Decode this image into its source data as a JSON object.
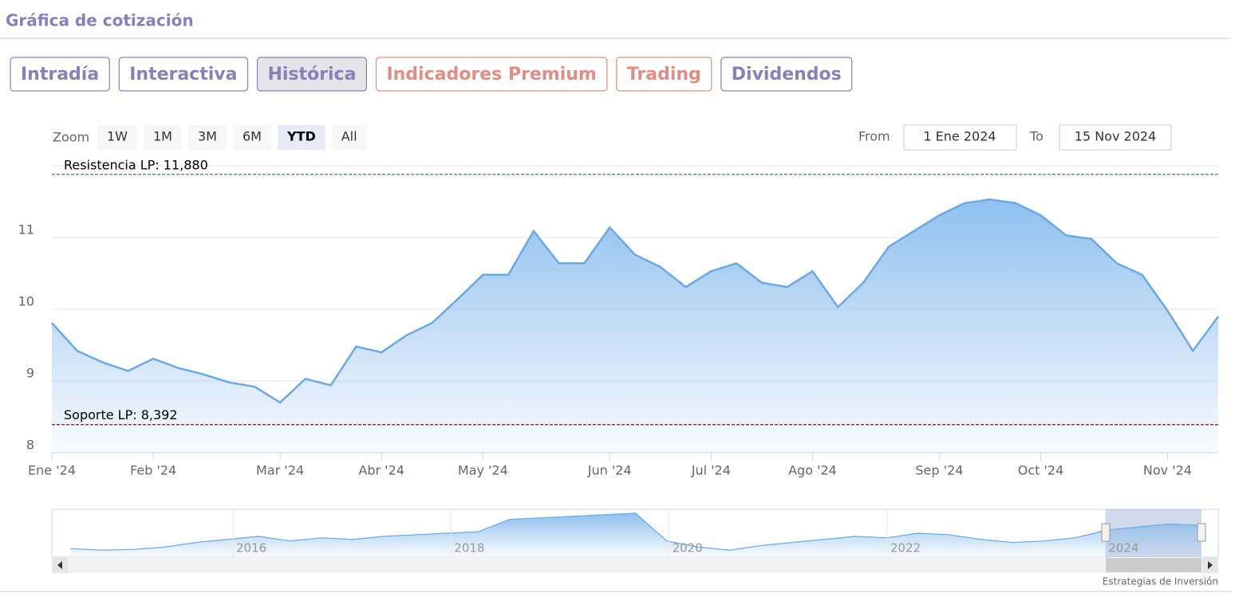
{
  "header": {
    "title": "Gráfica de cotización"
  },
  "tabs": [
    {
      "label": "Intradía",
      "color": "#8a80b8"
    },
    {
      "label": "Interactiva",
      "color": "#8a80b8"
    },
    {
      "label": "Histórica",
      "color": "#8a80b8",
      "active": true
    },
    {
      "label": "Indicadores Premium",
      "color": "#e08d86"
    },
    {
      "label": "Trading",
      "color": "#e08d86"
    },
    {
      "label": "Dividendos",
      "color": "#8a80b8"
    }
  ],
  "zoom": {
    "label": "Zoom",
    "buttons": [
      "1W",
      "1M",
      "3M",
      "6M",
      "YTD",
      "All"
    ],
    "selected": 4
  },
  "range": {
    "from_label": "From",
    "from": "1 Ene 2024",
    "to_label": "To",
    "to": "15 Nov 2024"
  },
  "chart_data": {
    "type": "area",
    "categories": [
      "Ene '24",
      null,
      null,
      null,
      "Feb '24",
      null,
      null,
      null,
      null,
      "Mar '24",
      null,
      null,
      null,
      "Abr '24",
      null,
      null,
      null,
      "May '24",
      null,
      null,
      null,
      null,
      "Jun '24",
      null,
      null,
      null,
      "Jul '24",
      null,
      null,
      null,
      "Ago '24",
      null,
      null,
      null,
      null,
      "Sep '24",
      null,
      null,
      null,
      "Oct '24",
      null,
      null,
      null,
      null,
      "Nov '24",
      null,
      null
    ],
    "series": [
      {
        "name": "Cotización",
        "color": "#6fa8dc",
        "values": [
          9.81,
          9.42,
          9.26,
          9.14,
          9.31,
          9.18,
          9.09,
          8.98,
          8.92,
          8.7,
          9.03,
          8.94,
          9.48,
          9.4,
          9.64,
          9.81,
          10.14,
          10.48,
          10.48,
          11.09,
          10.64,
          10.64,
          11.14,
          10.76,
          10.59,
          10.31,
          10.53,
          10.64,
          10.37,
          10.31,
          10.53,
          10.03,
          10.37,
          10.87,
          11.09,
          11.31,
          11.48,
          11.53,
          11.48,
          11.31,
          11.03,
          10.98,
          10.64,
          10.48,
          9.98,
          9.42,
          9.9
        ]
      }
    ],
    "ylim": [
      8,
      12
    ],
    "yticks": [
      8,
      9,
      10,
      11
    ],
    "grid": true,
    "lines": [
      {
        "label": "Resistencia LP: 11,880",
        "value": 11.88,
        "color": "#2e7d32"
      },
      {
        "label": "Soporte LP: 8,392",
        "value": 8.392,
        "color": "#8b1a2b"
      }
    ]
  },
  "navigator": {
    "labels": [
      "2016",
      "2018",
      "2020",
      "2022",
      "2024"
    ],
    "ylim": [
      0,
      60
    ],
    "values": [
      10,
      8,
      9,
      12,
      18,
      22,
      26,
      20,
      24,
      22,
      26,
      28,
      30,
      32,
      48,
      50,
      52,
      54,
      56,
      20,
      12,
      8,
      14,
      18,
      22,
      26,
      24,
      30,
      28,
      22,
      18,
      20,
      24,
      34,
      38,
      42,
      40
    ]
  },
  "credit": "Estrategias de Inversión"
}
